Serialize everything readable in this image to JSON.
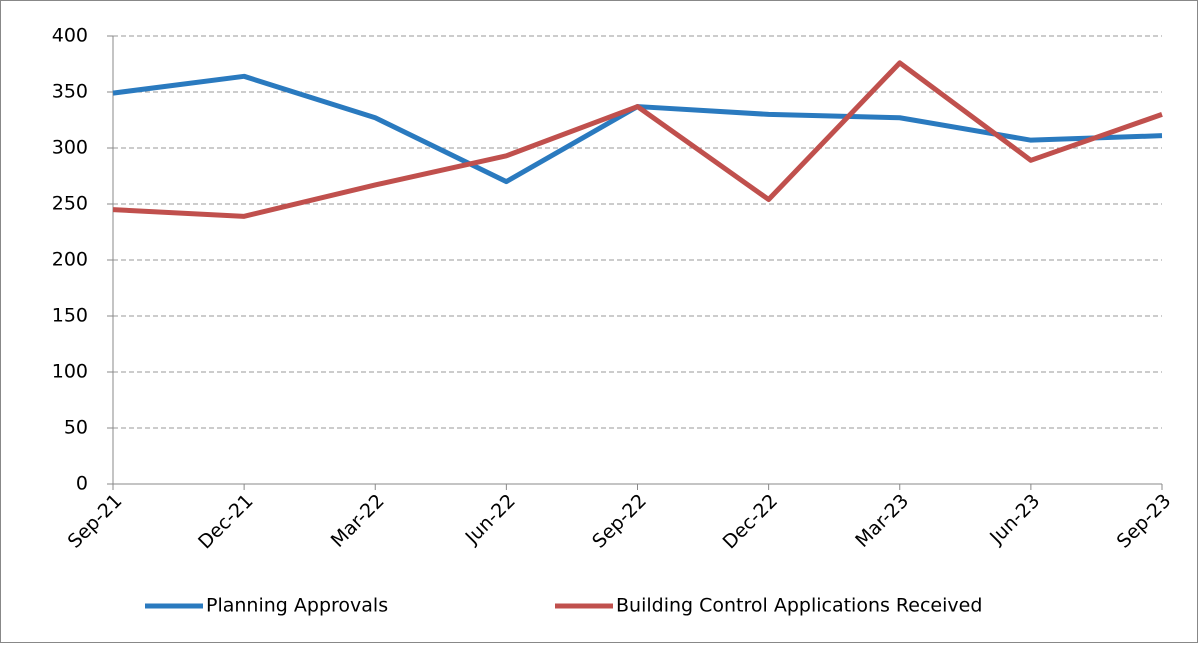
{
  "chart_data": {
    "type": "line",
    "categories": [
      "Sep-21",
      "Dec-21",
      "Mar-22",
      "Jun-22",
      "Sep-22",
      "Dec-22",
      "Mar-23",
      "Jun-23",
      "Sep-23"
    ],
    "series": [
      {
        "name": "Planning Approvals",
        "color": "#2a7abf",
        "values": [
          349,
          364,
          327,
          270,
          337,
          330,
          327,
          307,
          311
        ]
      },
      {
        "name": "Building Control Applications Received",
        "color": "#c0504d",
        "values": [
          245,
          239,
          267,
          293,
          337,
          254,
          376,
          289,
          330
        ]
      }
    ],
    "ylim": [
      0,
      400
    ],
    "yticks": [
      0,
      50,
      100,
      150,
      200,
      250,
      300,
      350,
      400
    ],
    "grid": true,
    "legend": "bottom"
  }
}
